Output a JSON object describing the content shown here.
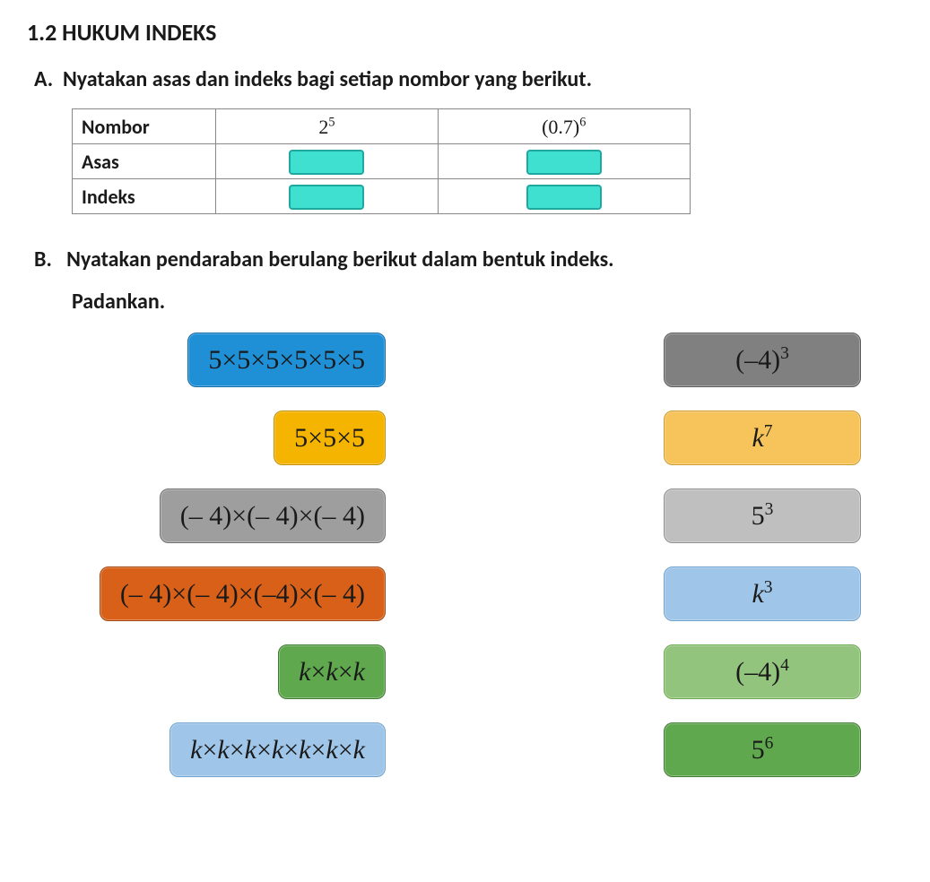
{
  "title": "1.2 HUKUM INDEKS",
  "sectionA": {
    "prompt": "A.  Nyatakan asas dan indeks bagi setiap nombor yang berikut.",
    "rows": {
      "nombor": "Nombor",
      "asas": "Asas",
      "indeks": "Indeks"
    },
    "col1_base": "2",
    "col1_exp": "5",
    "col2_base": "(0.7)",
    "col2_exp": "6",
    "slot_bg": "#40e0d0",
    "slot_border": "#1fa8a0"
  },
  "sectionB": {
    "prompt": "B.   Nyatakan pendaraban berulang berikut dalam bentuk indeks.",
    "sub": "Padankan.",
    "left": [
      {
        "html": "5×5×5×5×5×5",
        "bg": "#1f8fd6",
        "border": "#0f6aa8"
      },
      {
        "html": "5×5×5",
        "bg": "#f4b400",
        "border": "#c38f00"
      },
      {
        "html": "(– 4)×(– 4)×(– 4)",
        "bg": "#9e9e9e",
        "border": "#6e6e6e"
      },
      {
        "html": "(– 4)×(– 4)×(–4)×(– 4)",
        "bg": "#d86018",
        "border": "#a54610"
      },
      {
        "html": "<span class='it'>k</span>×<span class='it'>k</span>×<span class='it'>k</span>",
        "bg": "#5fa84d",
        "border": "#3f7a33"
      },
      {
        "html": "<span class='it'>k</span>×<span class='it'>k</span>×<span class='it'>k</span>×<span class='it'>k</span>×<span class='it'>k</span>×<span class='it'>k</span>×<span class='it'>k</span>",
        "bg": "#9fc5e8",
        "border": "#6fa3cf"
      }
    ],
    "right": [
      {
        "html": "(–4)<span class='sup'>3</span>",
        "bg": "#808080",
        "border": "#5a5a5a"
      },
      {
        "html": "<span class='it'>k</span><span class='sup'>7</span>",
        "bg": "#f6c45a",
        "border": "#d09a2e"
      },
      {
        "html": "5<span class='sup'>3</span>",
        "bg": "#bfbfbf",
        "border": "#8f8f8f"
      },
      {
        "html": "<span class='it'>k</span><span class='sup'>3</span>",
        "bg": "#9fc5e8",
        "border": "#6fa3cf"
      },
      {
        "html": "(–4)<span class='sup'>4</span>",
        "bg": "#93c47d",
        "border": "#6aa84f"
      },
      {
        "html": "5<span class='sup'>6</span>",
        "bg": "#5fa84d",
        "border": "#3f7a33"
      }
    ]
  }
}
